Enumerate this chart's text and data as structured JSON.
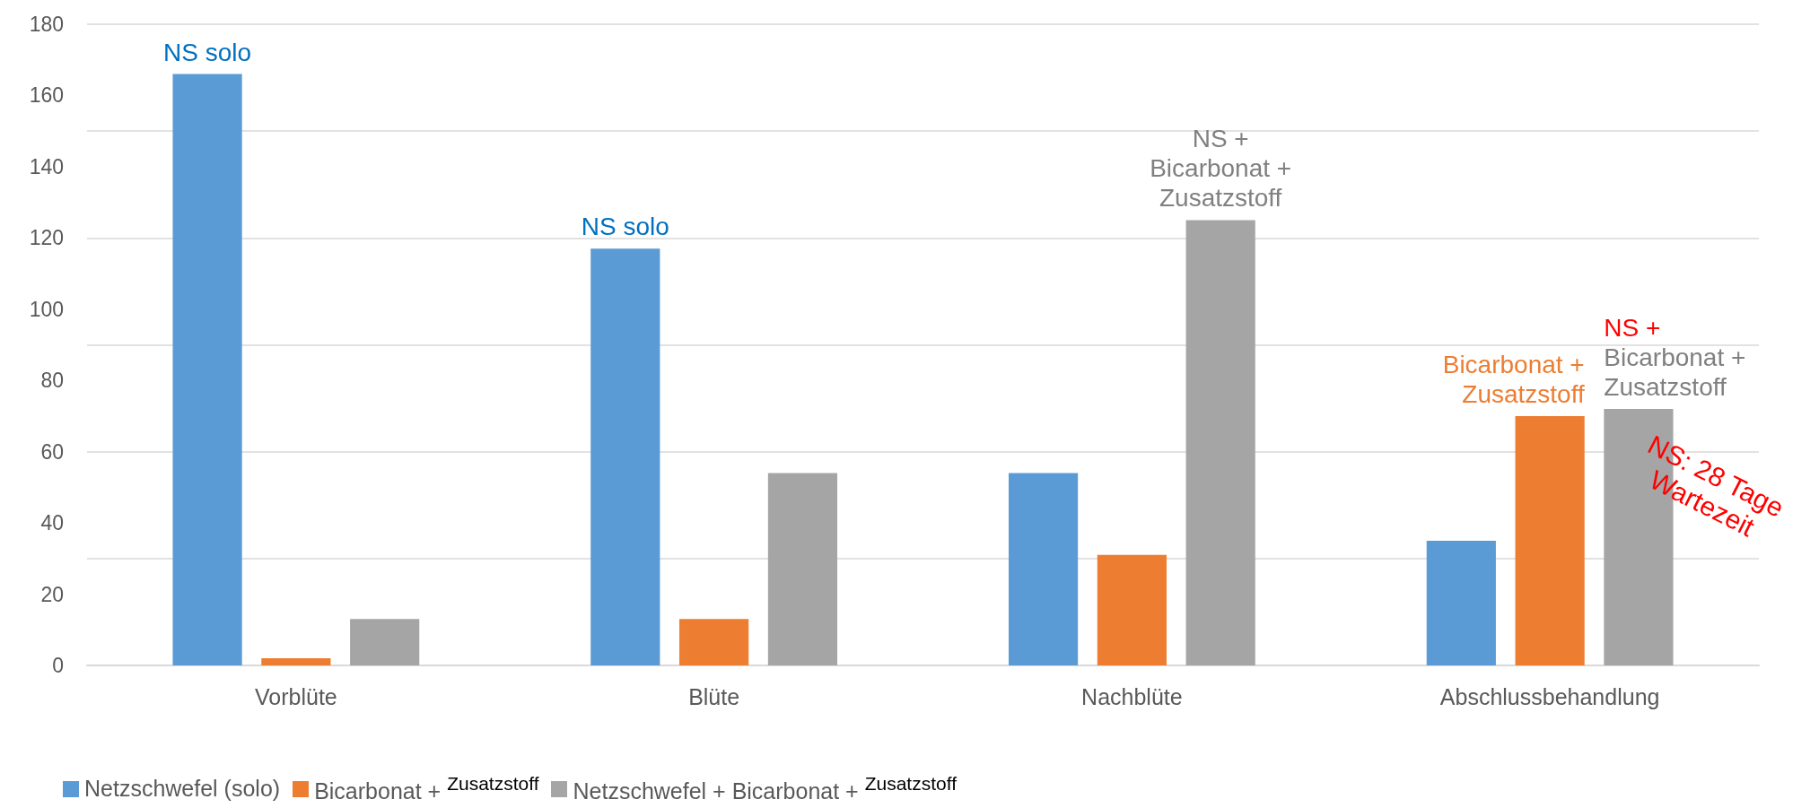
{
  "chart_data": {
    "type": "bar",
    "categories": [
      "Vorblüte",
      "Blüte",
      "Nachblüte",
      "Abschlussbehandlung"
    ],
    "series": [
      {
        "name": "Netzschwefel (solo)",
        "color": "#5b9bd5",
        "values": [
          166,
          117,
          54,
          35
        ]
      },
      {
        "name": "Bicarbonat + $^{Zusatzstoff}$",
        "color": "#ed7d31",
        "values": [
          2,
          13,
          31,
          70
        ]
      },
      {
        "name": "Netzschwefel + Bicarbonat + $^{Zusatzstoff}$",
        "color": "#a5a5a5",
        "values": [
          13,
          54,
          125,
          72
        ]
      }
    ],
    "ylim": [
      0,
      180
    ],
    "yticks": [
      0,
      20,
      40,
      60,
      80,
      100,
      120,
      140,
      160,
      180
    ],
    "grid": "y",
    "legend": "bottom left",
    "annotations": [
      "NS solo",
      "NS solo",
      "NS +\nBicarbonat +\nZusatzstoff",
      "Bicarbonat +\nZusatzstoff",
      "NS +",
      "Bicarbonat +\nZusatzstoff",
      "NS: 28 Tage\nWartezeit"
    ]
  }
}
